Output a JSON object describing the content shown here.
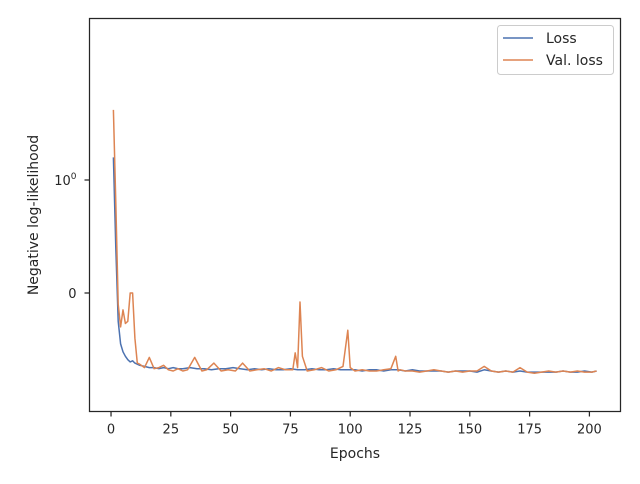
{
  "chart_data": {
    "type": "line",
    "title": "",
    "xlabel": "Epochs",
    "ylabel": "Negative log-likelihood",
    "y_scale": "symlog",
    "xlim": [
      -9,
      213
    ],
    "x_ticks": [
      {
        "value": 0,
        "label": "0"
      },
      {
        "value": 25,
        "label": "25"
      },
      {
        "value": 50,
        "label": "50"
      },
      {
        "value": 75,
        "label": "75"
      },
      {
        "value": 100,
        "label": "100"
      },
      {
        "value": 125,
        "label": "125"
      },
      {
        "value": 150,
        "label": "150"
      },
      {
        "value": 175,
        "label": "175"
      },
      {
        "value": 200,
        "label": "200"
      }
    ],
    "y_ticks": [
      {
        "value": 1,
        "label_base": "10",
        "label_exp": "0"
      },
      {
        "value": 0,
        "label_base": "0",
        "label_exp": ""
      }
    ],
    "grid": false,
    "legend": {
      "position": "top-right"
    },
    "colors": {
      "Loss": "#4c72b0",
      "Val. loss": "#dd8452",
      "axes": "#262626"
    },
    "series": [
      {
        "name": "Loss",
        "color": "#4c72b0",
        "x": [
          1,
          2,
          3,
          4,
          5,
          6,
          7,
          8,
          9,
          10,
          12,
          14,
          16,
          18,
          20,
          22,
          24,
          26,
          28,
          30,
          33,
          36,
          39,
          42,
          45,
          48,
          51,
          54,
          57,
          60,
          63,
          66,
          69,
          72,
          75,
          78,
          81,
          84,
          87,
          90,
          93,
          96,
          99,
          102,
          105,
          108,
          111,
          114,
          117,
          120,
          123,
          126,
          129,
          132,
          135,
          138,
          141,
          144,
          147,
          150,
          153,
          156,
          159,
          162,
          165,
          168,
          171,
          174,
          177,
          180,
          183,
          186,
          189,
          192,
          195,
          198,
          201,
          203
        ],
        "y": [
          1.2,
          0.4,
          -0.25,
          -0.45,
          -0.52,
          -0.56,
          -0.59,
          -0.61,
          -0.6,
          -0.62,
          -0.64,
          -0.65,
          -0.66,
          -0.66,
          -0.67,
          -0.66,
          -0.67,
          -0.66,
          -0.67,
          -0.67,
          -0.66,
          -0.67,
          -0.67,
          -0.68,
          -0.67,
          -0.67,
          -0.66,
          -0.67,
          -0.68,
          -0.67,
          -0.68,
          -0.67,
          -0.68,
          -0.68,
          -0.67,
          -0.68,
          -0.68,
          -0.67,
          -0.68,
          -0.68,
          -0.67,
          -0.68,
          -0.68,
          -0.68,
          -0.69,
          -0.68,
          -0.68,
          -0.69,
          -0.68,
          -0.68,
          -0.69,
          -0.68,
          -0.69,
          -0.69,
          -0.69,
          -0.69,
          -0.7,
          -0.69,
          -0.69,
          -0.69,
          -0.7,
          -0.68,
          -0.69,
          -0.7,
          -0.69,
          -0.7,
          -0.69,
          -0.7,
          -0.7,
          -0.7,
          -0.7,
          -0.7,
          -0.69,
          -0.7,
          -0.7,
          -0.69,
          -0.7,
          -0.69
        ]
      },
      {
        "name": "Val. loss",
        "color": "#dd8452",
        "x": [
          1,
          2,
          3,
          4,
          5,
          6,
          7,
          8,
          9,
          10,
          11,
          12,
          14,
          16,
          18,
          20,
          22,
          24,
          26,
          28,
          30,
          32,
          35,
          38,
          40,
          43,
          46,
          49,
          52,
          55,
          58,
          61,
          64,
          67,
          70,
          73,
          76,
          77,
          78,
          79,
          80,
          82,
          85,
          88,
          91,
          94,
          97,
          99,
          100,
          102,
          105,
          108,
          111,
          114,
          117,
          119,
          120,
          121,
          123,
          126,
          129,
          132,
          135,
          138,
          141,
          144,
          147,
          150,
          153,
          156,
          159,
          162,
          165,
          168,
          171,
          174,
          177,
          180,
          183,
          186,
          189,
          192,
          195,
          198,
          201,
          203
        ],
        "y": [
          1.62,
          0.8,
          -0.1,
          -0.3,
          -0.15,
          -0.27,
          -0.25,
          0.0,
          0.0,
          -0.4,
          -0.62,
          -0.63,
          -0.66,
          -0.57,
          -0.67,
          -0.66,
          -0.64,
          -0.68,
          -0.69,
          -0.67,
          -0.69,
          -0.68,
          -0.57,
          -0.69,
          -0.68,
          -0.62,
          -0.69,
          -0.68,
          -0.69,
          -0.62,
          -0.69,
          -0.68,
          -0.67,
          -0.69,
          -0.66,
          -0.68,
          -0.68,
          -0.53,
          -0.66,
          -0.08,
          -0.56,
          -0.69,
          -0.68,
          -0.66,
          -0.69,
          -0.68,
          -0.65,
          -0.33,
          -0.66,
          -0.69,
          -0.68,
          -0.69,
          -0.69,
          -0.68,
          -0.67,
          -0.56,
          -0.69,
          -0.68,
          -0.69,
          -0.69,
          -0.7,
          -0.69,
          -0.68,
          -0.69,
          -0.7,
          -0.69,
          -0.7,
          -0.69,
          -0.69,
          -0.65,
          -0.69,
          -0.7,
          -0.69,
          -0.7,
          -0.66,
          -0.7,
          -0.71,
          -0.7,
          -0.69,
          -0.7,
          -0.69,
          -0.7,
          -0.69,
          -0.7,
          -0.7,
          -0.69
        ]
      }
    ]
  }
}
